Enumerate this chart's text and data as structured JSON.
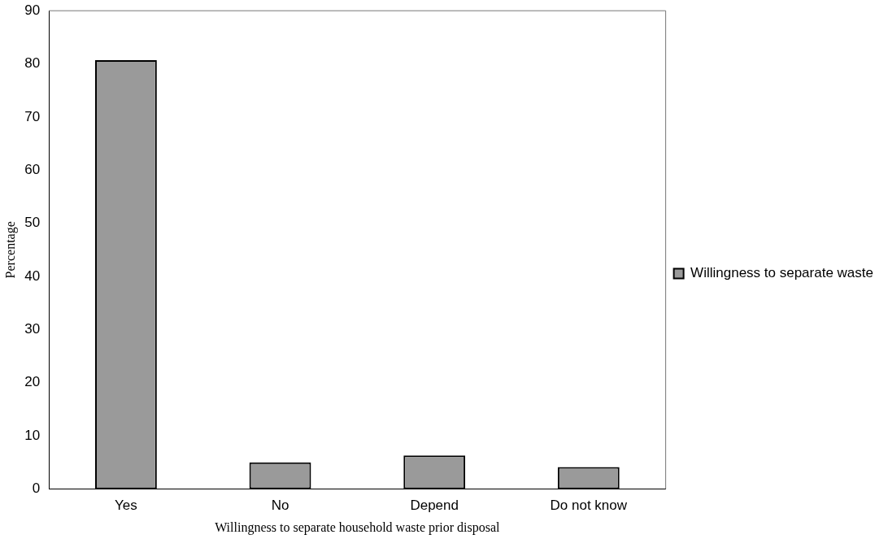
{
  "chart_data": {
    "type": "bar",
    "xlabel": "Willingness to separate household waste prior disposal",
    "ylabel": "Percentage",
    "categories": [
      "Yes",
      "No",
      "Depend",
      "Do not know"
    ],
    "series": [
      {
        "name": "Willingness to separate waste",
        "color": "#9a9a9a",
        "values": [
          80.7,
          5.0,
          6.3,
          4.1
        ]
      }
    ],
    "ylim": [
      0,
      90
    ],
    "yticks": [
      0,
      10,
      20,
      30,
      40,
      50,
      60,
      70,
      80,
      90
    ],
    "grid": false,
    "legend": "right"
  }
}
